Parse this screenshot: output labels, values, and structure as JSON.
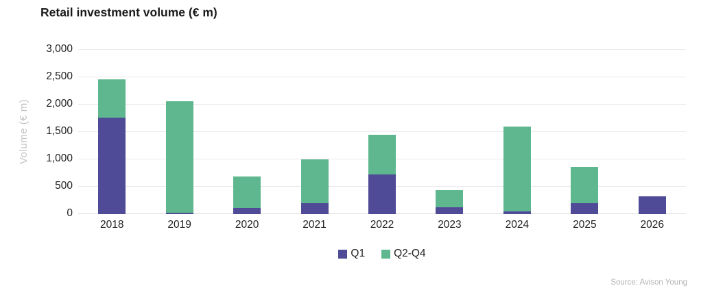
{
  "title": "Retail investment volume (€ m)",
  "source": "Source: Avison Young",
  "colors": {
    "q1_purple": "#4f4b96",
    "q2q4_green": "#5eb78f",
    "gridline": "#e9e9e9",
    "axis_text": "#212121",
    "muted_text": "#c4c4c4"
  },
  "chart_data": {
    "type": "bar",
    "stacked": true,
    "title": "Retail investment volume (€ m)",
    "categories": [
      "2018",
      "2019",
      "2020",
      "2021",
      "2022",
      "2023",
      "2024",
      "2025",
      "2026"
    ],
    "series": [
      {
        "name": "Q1",
        "color": "#4f4b96",
        "values": [
          1760,
          25,
          110,
          195,
          720,
          130,
          55,
          200,
          325
        ]
      },
      {
        "name": "Q2-Q4",
        "color": "#5eb78f",
        "values": [
          705,
          2040,
          575,
          805,
          730,
          305,
          1540,
          665,
          0
        ]
      }
    ],
    "xlabel": "",
    "ylabel": "Volume (€ m)",
    "ylim": [
      0,
      3000
    ],
    "yticks": [
      0,
      500,
      1000,
      1500,
      2000,
      2500,
      3000
    ],
    "ytick_labels": [
      "0",
      "500",
      "1,000",
      "1,500",
      "2,000",
      "2,500",
      "3,000"
    ],
    "grid": true,
    "legend_position": "bottom"
  }
}
